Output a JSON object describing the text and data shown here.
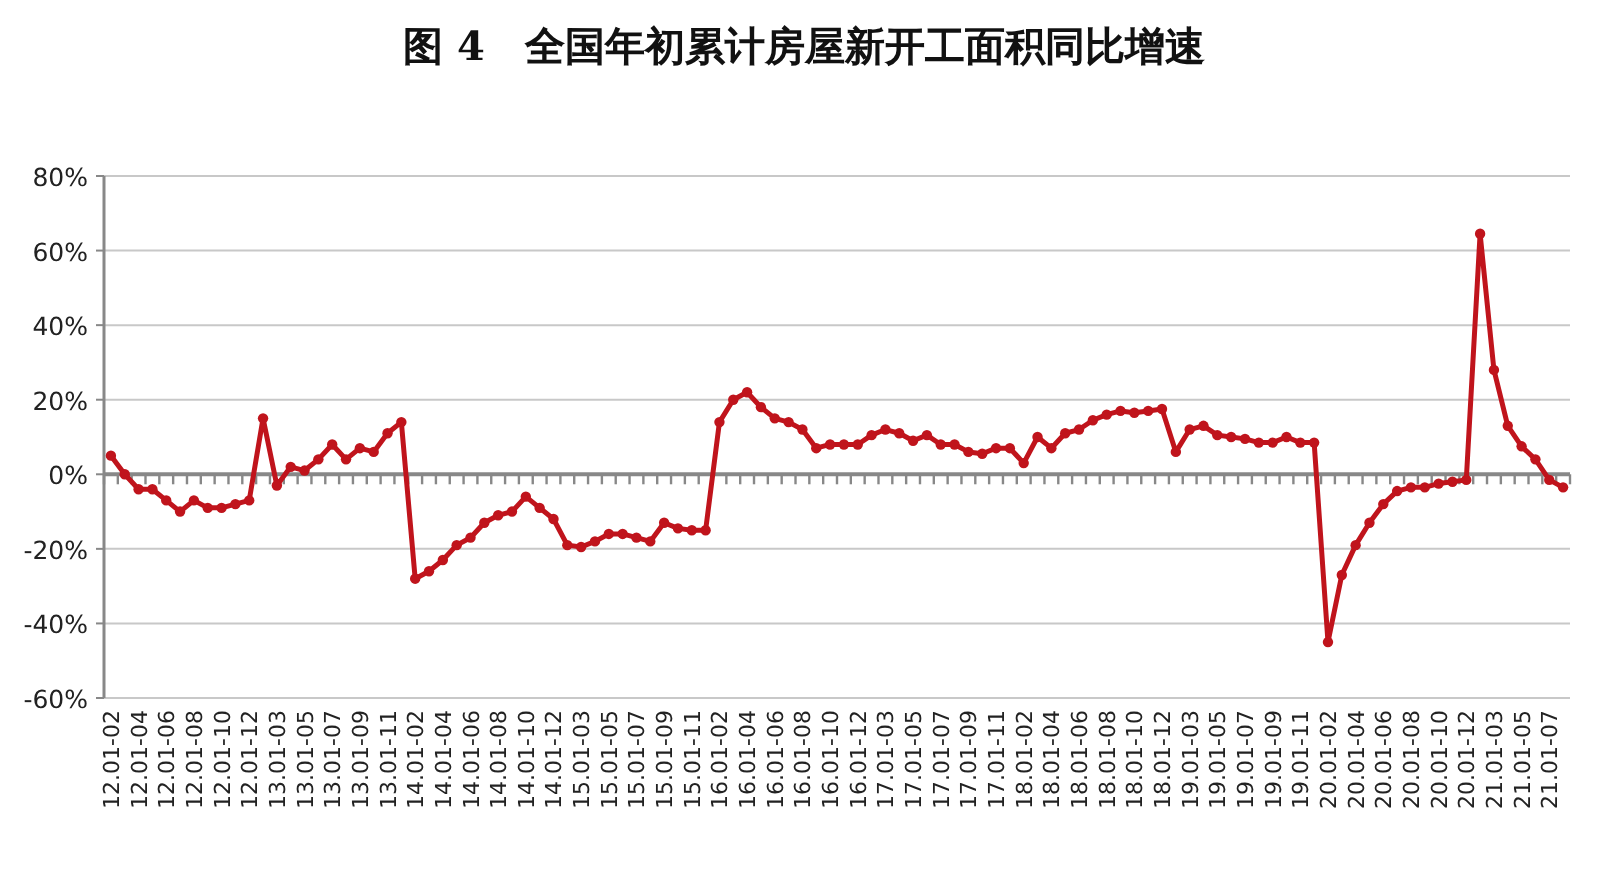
{
  "chart_data": {
    "type": "line",
    "title": "图 4　全国年初累计房屋新开工面积同比增速",
    "categories": [
      "12.01-02",
      null,
      "12.01-04",
      null,
      "12.01-06",
      null,
      "12.01-08",
      null,
      "12.01-10",
      null,
      "12.01-12",
      null,
      "13.01-03",
      null,
      "13.01-05",
      null,
      "13.01-07",
      null,
      "13.01-09",
      null,
      "13.01-11",
      null,
      "14.01-02",
      null,
      "14.01-04",
      null,
      "14.01-06",
      null,
      "14.01-08",
      null,
      "14.01-10",
      null,
      "14.01-12",
      null,
      "15.01-03",
      null,
      "15.01-05",
      null,
      "15.01-07",
      null,
      "15.01-09",
      null,
      "15.01-11",
      null,
      "16.01-02",
      null,
      "16.01-04",
      null,
      "16.01-06",
      null,
      "16.01-08",
      null,
      "16.01-10",
      null,
      "16.01-12",
      null,
      "17.01-03",
      null,
      "17.01-05",
      null,
      "17.01-07",
      null,
      "17.01-09",
      null,
      "17.01-11",
      null,
      "18.01-02",
      null,
      "18.01-04",
      null,
      "18.01-06",
      null,
      "18.01-08",
      null,
      "18.01-10",
      null,
      "18.01-12",
      null,
      "19.01-03",
      null,
      "19.01-05",
      null,
      "19.01-07",
      null,
      "19.01-09",
      null,
      "19.01-11",
      null,
      "20.01-02",
      null,
      "20.01-04",
      null,
      "20.01-06",
      null,
      "20.01-08",
      null,
      "20.01-10",
      null,
      "20.01-12",
      null,
      "21.01-03",
      null,
      "21.01-05",
      null,
      "21.01-07",
      null
    ],
    "series": [
      {
        "color": "#c0141c",
        "values": [
          5,
          0,
          -4,
          -4,
          -7,
          -10,
          -7,
          -9,
          -9,
          -8,
          -7,
          15,
          -3,
          2,
          1,
          4,
          8,
          4,
          7,
          6,
          11,
          14,
          -28,
          -26,
          -23,
          -19,
          -17,
          -13,
          -11,
          -10,
          -6,
          -9,
          -12,
          -19,
          -19.5,
          -18,
          -16,
          -16,
          -17,
          -18,
          -13,
          -14.5,
          -15,
          -15,
          14,
          20,
          22,
          18,
          15,
          14,
          12,
          7,
          8,
          8,
          8,
          10.5,
          12,
          11,
          9,
          10.5,
          8,
          8,
          6,
          5.5,
          7,
          7,
          3,
          10,
          7,
          11,
          12,
          14.5,
          16,
          17,
          16.5,
          17,
          17.5,
          6,
          12,
          13,
          10.5,
          10,
          9.5,
          8.5,
          8.5,
          10,
          8.5,
          8.5,
          -45,
          -27,
          -19,
          -13,
          -8,
          -4.5,
          -3.5,
          -3.5,
          -2.5,
          -2,
          -1.5,
          64.5,
          28,
          13,
          7.5,
          4,
          -1.5,
          -3.5
        ]
      }
    ],
    "ylim": [
      -60,
      80
    ],
    "yticks": [
      {
        "value": -60,
        "label": "-60%"
      },
      {
        "value": -40,
        "label": "-40%"
      },
      {
        "value": -20,
        "label": "-20%"
      },
      {
        "value": 0,
        "label": "0%"
      },
      {
        "value": 20,
        "label": "20%"
      },
      {
        "value": 40,
        "label": "40%"
      },
      {
        "value": 60,
        "label": "60%"
      },
      {
        "value": 80,
        "label": "80%"
      }
    ],
    "grid": "y",
    "marker": "circle"
  }
}
